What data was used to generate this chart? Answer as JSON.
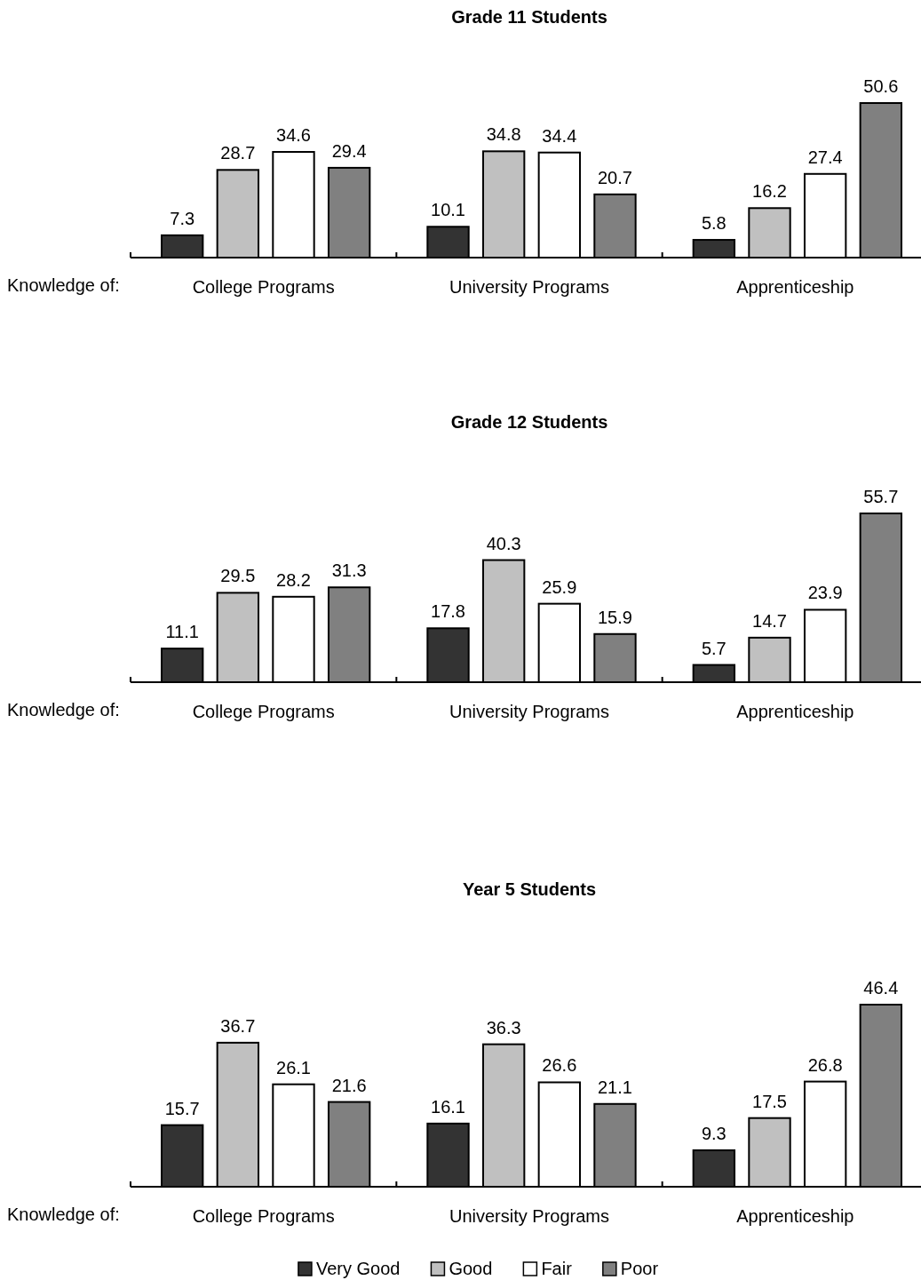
{
  "chart_data": [
    {
      "type": "bar",
      "title": "Grade 11 Students",
      "xlabel": "Knowledge of:",
      "categories": [
        "College Programs",
        "University Programs",
        "Apprenticeship"
      ],
      "data_labels": true,
      "legend": false,
      "series": [
        {
          "color": "#333333",
          "values": [
            7.3,
            10.1,
            5.8
          ]
        },
        {
          "color": "#c0c0c0",
          "values": [
            28.7,
            34.8,
            16.2
          ]
        },
        {
          "color": "#ffffff",
          "values": [
            34.6,
            34.4,
            27.4
          ]
        },
        {
          "color": "#808080",
          "values": [
            29.4,
            20.7,
            50.6
          ]
        }
      ]
    },
    {
      "type": "bar",
      "title": "Grade 12 Students",
      "xlabel": "Knowledge of:",
      "categories": [
        "College Programs",
        "University Programs",
        "Apprenticeship"
      ],
      "data_labels": true,
      "legend": false,
      "series": [
        {
          "color": "#333333",
          "values": [
            11.1,
            17.8,
            5.7
          ]
        },
        {
          "color": "#c0c0c0",
          "values": [
            29.5,
            40.3,
            14.7
          ]
        },
        {
          "color": "#ffffff",
          "values": [
            28.2,
            25.9,
            23.9
          ]
        },
        {
          "color": "#808080",
          "values": [
            31.3,
            15.9,
            55.7
          ]
        }
      ]
    },
    {
      "type": "bar",
      "title": "Year 5 Students",
      "xlabel": "Knowledge of:",
      "categories": [
        "College Programs",
        "University Programs",
        "Apprenticeship"
      ],
      "data_labels": true,
      "legend": "bottom",
      "series": [
        {
          "name": "Very Good",
          "color": "#333333",
          "values": [
            15.7,
            16.1,
            9.3
          ]
        },
        {
          "name": "Good",
          "color": "#c0c0c0",
          "values": [
            36.7,
            36.3,
            17.5
          ]
        },
        {
          "name": "Fair",
          "color": "#ffffff",
          "values": [
            26.1,
            26.6,
            26.8
          ]
        },
        {
          "name": "Poor",
          "color": "#808080",
          "values": [
            21.6,
            21.1,
            46.4
          ]
        }
      ]
    }
  ]
}
